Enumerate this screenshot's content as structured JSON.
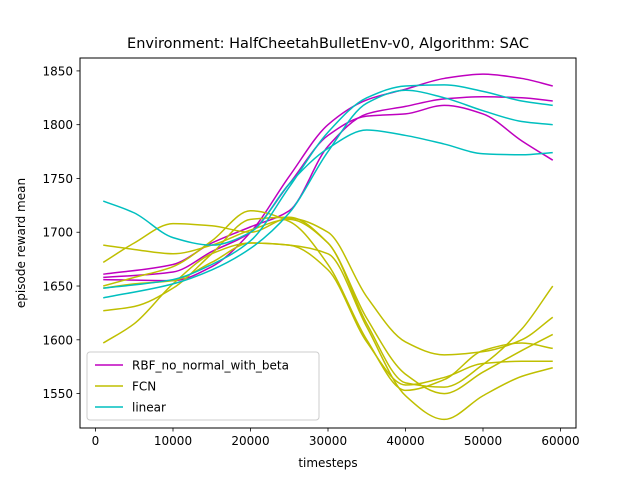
{
  "chart_data": {
    "type": "line",
    "title": "Environment: HalfCheetahBulletEnv-v0,  Algorithm: SAC",
    "xlabel": "timesteps",
    "ylabel": "episode reward mean",
    "xlim": [
      -2000,
      62000
    ],
    "ylim": [
      1518,
      1862
    ],
    "xticks": [
      0,
      10000,
      20000,
      30000,
      40000,
      50000,
      60000
    ],
    "yticks": [
      1550,
      1600,
      1650,
      1700,
      1750,
      1800,
      1850
    ],
    "grid": false,
    "legend_position": "lower-left",
    "legend": [
      {
        "name": "RBF_no_normal_with_beta",
        "color": "#bf00bf"
      },
      {
        "name": "FCN",
        "color": "#bfbf00"
      },
      {
        "name": "linear",
        "color": "#00bfbf"
      }
    ],
    "series": [
      {
        "group": "RBF_no_normal_with_beta",
        "color": "#bf00bf",
        "x": [
          1000,
          10000,
          15000,
          20000,
          25000,
          30000,
          35000,
          40000,
          45000,
          50000,
          55000,
          59000
        ],
        "y": [
          1656,
          1655,
          1668,
          1700,
          1752,
          1800,
          1823,
          1833,
          1843,
          1847,
          1843,
          1836
        ]
      },
      {
        "group": "RBF_no_normal_with_beta",
        "color": "#bf00bf",
        "x": [
          1000,
          10000,
          15000,
          20000,
          25000,
          30000,
          35000,
          40000,
          45000,
          50000,
          55000,
          59000
        ],
        "y": [
          1661,
          1670,
          1690,
          1705,
          1720,
          1780,
          1810,
          1817,
          1824,
          1826,
          1825,
          1822
        ]
      },
      {
        "group": "RBF_no_normal_with_beta",
        "color": "#bf00bf",
        "x": [
          1000,
          10000,
          15000,
          20000,
          25000,
          30000,
          35000,
          40000,
          45000,
          50000,
          55000,
          59000
        ],
        "y": [
          1658,
          1663,
          1682,
          1700,
          1745,
          1790,
          1808,
          1810,
          1818,
          1810,
          1785,
          1767
        ]
      },
      {
        "group": "FCN",
        "color": "#bfbf00",
        "x": [
          1000,
          5000,
          10000,
          15000,
          20000,
          25000,
          30000,
          35000,
          40000,
          45000,
          50000,
          55000,
          59000
        ],
        "y": [
          1688,
          1684,
          1680,
          1688,
          1702,
          1712,
          1690,
          1615,
          1560,
          1556,
          1577,
          1610,
          1650
        ]
      },
      {
        "group": "FCN",
        "color": "#bfbf00",
        "x": [
          1000,
          5000,
          10000,
          15000,
          20000,
          25000,
          30000,
          35000,
          40000,
          45000,
          50000,
          55000,
          59000
        ],
        "y": [
          1672,
          1690,
          1708,
          1706,
          1700,
          1713,
          1700,
          1640,
          1598,
          1586,
          1589,
          1600,
          1621
        ]
      },
      {
        "group": "FCN",
        "color": "#bfbf00",
        "x": [
          1000,
          5000,
          10000,
          15000,
          20000,
          25000,
          30000,
          35000,
          40000,
          45000,
          50000,
          55000,
          59000
        ],
        "y": [
          1627,
          1631,
          1648,
          1680,
          1712,
          1714,
          1690,
          1620,
          1568,
          1550,
          1570,
          1590,
          1605
        ]
      },
      {
        "group": "FCN",
        "color": "#bfbf00",
        "x": [
          1000,
          5000,
          10000,
          15000,
          20000,
          25000,
          30000,
          35000,
          40000,
          45000,
          50000,
          55000,
          59000
        ],
        "y": [
          1597,
          1615,
          1652,
          1680,
          1690,
          1688,
          1680,
          1612,
          1548,
          1526,
          1548,
          1566,
          1574
        ]
      },
      {
        "group": "FCN",
        "color": "#bfbf00",
        "x": [
          1000,
          5000,
          10000,
          15000,
          20000,
          25000,
          30000,
          35000,
          40000,
          45000,
          50000,
          55000,
          59000
        ],
        "y": [
          1650,
          1658,
          1668,
          1692,
          1720,
          1710,
          1670,
          1600,
          1553,
          1563,
          1590,
          1597,
          1592
        ]
      },
      {
        "group": "FCN",
        "color": "#bfbf00",
        "x": [
          1000,
          5000,
          10000,
          15000,
          20000,
          25000,
          30000,
          35000,
          40000,
          45000,
          50000,
          55000,
          59000
        ],
        "y": [
          1648,
          1652,
          1655,
          1672,
          1690,
          1688,
          1665,
          1598,
          1558,
          1565,
          1578,
          1580,
          1580
        ]
      },
      {
        "group": "linear",
        "color": "#00bfbf",
        "x": [
          1000,
          5000,
          10000,
          15000,
          20000,
          25000,
          30000,
          35000,
          40000,
          45000,
          50000,
          55000,
          59000
        ],
        "y": [
          1729,
          1718,
          1695,
          1688,
          1700,
          1745,
          1778,
          1795,
          1790,
          1782,
          1773,
          1772,
          1774
        ]
      },
      {
        "group": "linear",
        "color": "#00bfbf",
        "x": [
          1000,
          10000,
          15000,
          20000,
          25000,
          30000,
          35000,
          40000,
          45000,
          50000,
          55000,
          59000
        ],
        "y": [
          1648,
          1656,
          1670,
          1692,
          1742,
          1793,
          1825,
          1836,
          1837,
          1831,
          1822,
          1818
        ]
      },
      {
        "group": "linear",
        "color": "#00bfbf",
        "x": [
          1000,
          10000,
          15000,
          20000,
          25000,
          30000,
          35000,
          40000,
          45000,
          50000,
          55000,
          59000
        ],
        "y": [
          1639,
          1652,
          1665,
          1685,
          1718,
          1775,
          1820,
          1832,
          1825,
          1813,
          1803,
          1800
        ]
      }
    ]
  }
}
